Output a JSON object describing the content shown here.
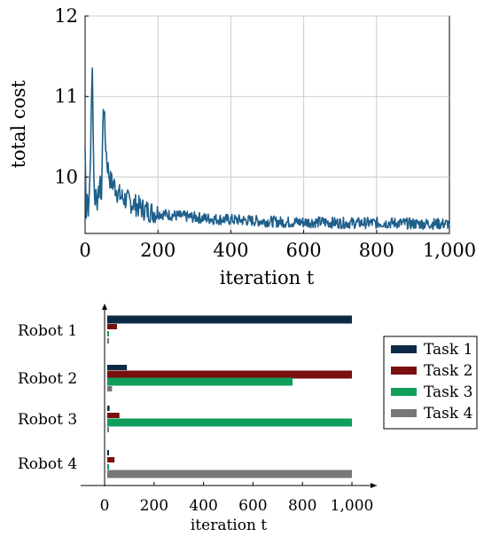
{
  "chart_data": [
    {
      "type": "line",
      "xlabel": "iteration t",
      "ylabel": "total cost",
      "xlim": [
        0,
        1000
      ],
      "ylim": [
        9.3,
        12
      ],
      "x_ticks": [
        0,
        200,
        400,
        600,
        800,
        1000
      ],
      "x_tick_labels": [
        "0",
        "200",
        "400",
        "600",
        "800",
        "1,000"
      ],
      "y_ticks": [
        10,
        11,
        12
      ],
      "y_tick_labels": [
        "10",
        "11",
        "12"
      ],
      "grid": true,
      "line_color": "#1f5f8b",
      "series": [
        {
          "x": [
            0,
            3,
            6,
            10,
            15,
            20,
            22,
            24,
            26,
            30,
            35,
            40,
            45,
            50,
            52,
            55,
            60,
            65,
            70,
            80,
            90,
            100,
            120,
            140,
            160,
            180,
            200,
            250,
            300,
            350,
            400,
            450,
            500,
            550,
            600,
            650,
            700,
            750,
            800,
            850,
            900,
            950,
            1000
          ],
          "values": [
            10.35,
            9.6,
            9.8,
            9.55,
            10.3,
            11.47,
            10.6,
            10.1,
            9.7,
            9.85,
            9.65,
            9.95,
            9.75,
            10.9,
            10.85,
            10.5,
            10.2,
            10.05,
            9.95,
            9.9,
            9.8,
            9.75,
            9.7,
            9.65,
            9.6,
            9.57,
            9.55,
            9.52,
            9.5,
            9.48,
            9.47,
            9.46,
            9.45,
            9.44,
            9.44,
            9.44,
            9.43,
            9.43,
            9.43,
            9.43,
            9.42,
            9.42,
            9.42
          ]
        }
      ]
    },
    {
      "type": "bar",
      "orientation": "horizontal",
      "xlabel": "iteration t",
      "xlim": [
        0,
        1000
      ],
      "x_ticks": [
        0,
        200,
        400,
        600,
        800,
        1000
      ],
      "x_tick_labels": [
        "0",
        "200",
        "400",
        "600",
        "800",
        "1,000"
      ],
      "categories": [
        "Robot 1",
        "Robot 2",
        "Robot 3",
        "Robot 4"
      ],
      "legend_position": "right",
      "series": [
        {
          "name": "Task 1",
          "color": "#0b2a45",
          "values": [
            1000,
            90,
            20,
            5
          ]
        },
        {
          "name": "Task 2",
          "color": "#7a0f0f",
          "values": [
            50,
            1000,
            60,
            40
          ]
        },
        {
          "name": "Task 3",
          "color": "#0f9e5c",
          "values": [
            5,
            760,
            1000,
            15
          ]
        },
        {
          "name": "Task 4",
          "color": "#777777",
          "values": [
            10,
            30,
            8,
            1000
          ]
        }
      ]
    }
  ]
}
